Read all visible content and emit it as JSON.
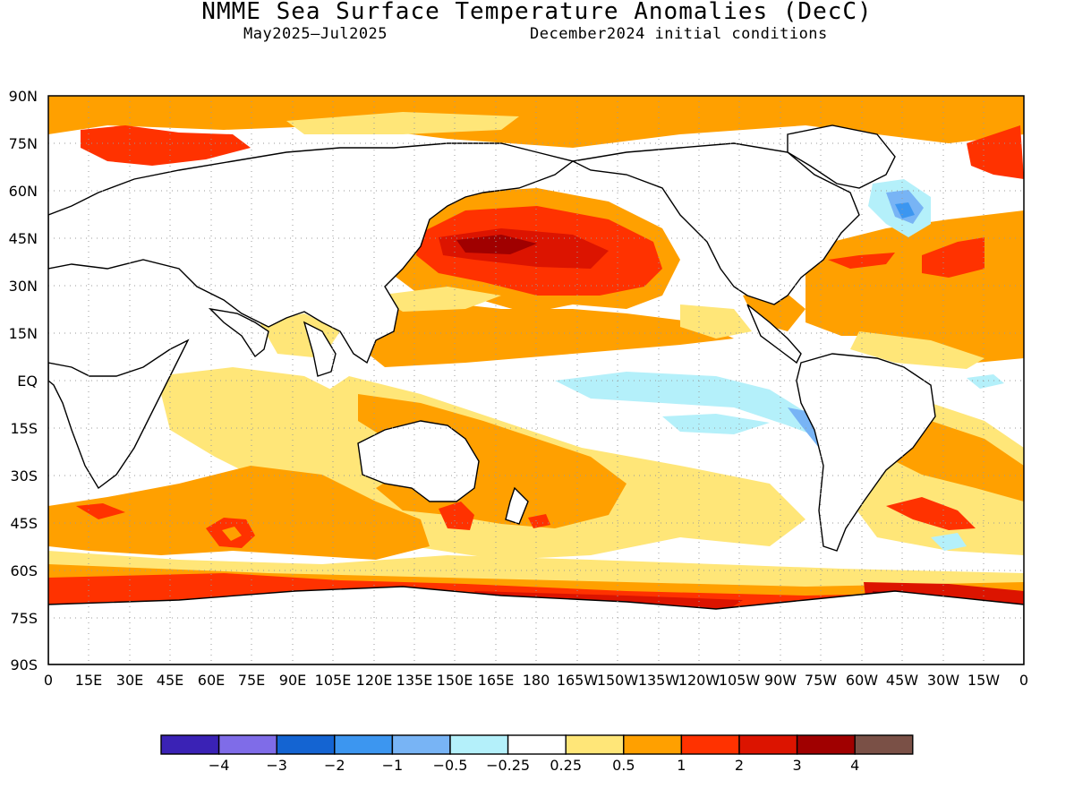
{
  "title": "NMME Sea Surface Temperature Anomalies (DecC)",
  "subtitle_left": "May2025–Jul2025",
  "subtitle_right": "December2024 initial conditions",
  "map": {
    "projection": "equirectangular",
    "lon_range": [
      0,
      360
    ],
    "lat_range": [
      -90,
      90
    ],
    "lat_labels": [
      "90N",
      "75N",
      "60N",
      "45N",
      "30N",
      "15N",
      "EQ",
      "15S",
      "30S",
      "45S",
      "60S",
      "75S",
      "90S"
    ],
    "lon_labels": [
      "0",
      "15E",
      "30E",
      "45E",
      "60E",
      "75E",
      "90E",
      "105E",
      "120E",
      "135E",
      "150E",
      "165E",
      "180",
      "165W",
      "150W",
      "135W",
      "120W",
      "105W",
      "90W",
      "75W",
      "60W",
      "45W",
      "30W",
      "15W",
      "0"
    ],
    "grid": "dotted"
  },
  "colorbar": {
    "colors": [
      "#3a22b5",
      "#7f6ce8",
      "#1464d2",
      "#3c96f0",
      "#78b4f5",
      "#b4f0fa",
      "#ffffff",
      "#ffe678",
      "#ffa000",
      "#ff3200",
      "#dc1400",
      "#a00000",
      "#7a5046"
    ],
    "labels": [
      "−4",
      "−3",
      "−2",
      "−1",
      "−0.5",
      "−0.25",
      "0.25",
      "0.5",
      "1",
      "2",
      "3",
      "4"
    ]
  },
  "palette": {
    "light_orange": "#ffe678",
    "orange": "#ffa000",
    "red_orange": "#ff3200",
    "red": "#dc1400",
    "dark_red": "#a00000",
    "brown": "#7a5046",
    "light_cyan": "#b4f0fa",
    "light_blue": "#78b4f5",
    "blue": "#3c96f0"
  }
}
